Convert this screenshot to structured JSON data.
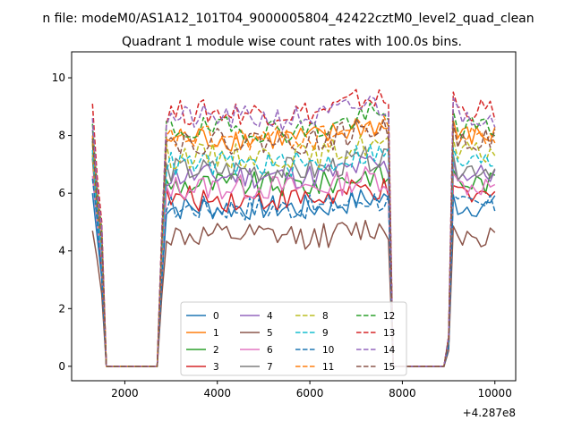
{
  "figure": {
    "suptitle": "n file: modeM0/AS1A12_101T04_9000005804_42422cztM0_level2_quad_clean",
    "title": "Quadrant 1 module wise count rates with 100.0s bins."
  },
  "chart_data": {
    "type": "line",
    "title": "Quadrant 1 module wise count rates with 100.0s bins.",
    "xlabel": "",
    "ylabel": "",
    "x_offset_label": "+4.287e8",
    "xlim": [
      850,
      10450
    ],
    "ylim": [
      -0.5,
      10.9
    ],
    "x_ticks": [
      2000,
      4000,
      6000,
      8000,
      10000
    ],
    "x_tick_labels": [
      "2000",
      "4000",
      "6000",
      "8000",
      "10000"
    ],
    "y_ticks": [
      0,
      2,
      4,
      6,
      8,
      10
    ],
    "y_tick_labels": [
      "0",
      "2",
      "4",
      "6",
      "8",
      "10"
    ],
    "grid": false,
    "legend_position": "lower-center",
    "segment_ranges": [
      [
        1300,
        2700
      ],
      [
        2800,
        7800
      ],
      [
        8900,
        10000
      ]
    ],
    "series": [
      {
        "name": "0",
        "color": "#1f77b4",
        "style": "solid",
        "level": 5.5,
        "spike": 6.0
      },
      {
        "name": "1",
        "color": "#ff7f0e",
        "style": "solid",
        "level": 7.9,
        "spike": 7.7
      },
      {
        "name": "2",
        "color": "#2ca02c",
        "style": "solid",
        "level": 6.3,
        "spike": 7.8
      },
      {
        "name": "3",
        "color": "#d62728",
        "style": "solid",
        "level": 5.8,
        "spike": 7.2
      },
      {
        "name": "4",
        "color": "#9467bd",
        "style": "solid",
        "level": 6.6,
        "spike": 8.2
      },
      {
        "name": "5",
        "color": "#8c564b",
        "style": "solid",
        "level": 4.5,
        "spike": 4.7
      },
      {
        "name": "6",
        "color": "#e377c2",
        "style": "solid",
        "level": 6.2,
        "spike": 6.6
      },
      {
        "name": "7",
        "color": "#7f7f7f",
        "style": "solid",
        "level": 6.8,
        "spike": 7.3
      },
      {
        "name": "8",
        "color": "#bcbd22",
        "style": "dashed",
        "level": 7.3,
        "spike": 7.4
      },
      {
        "name": "9",
        "color": "#17becf",
        "style": "dashed",
        "level": 7.0,
        "spike": 7.5
      },
      {
        "name": "10",
        "color": "#1f77b4",
        "style": "dashed",
        "level": 5.5,
        "spike": 6.5
      },
      {
        "name": "11",
        "color": "#ff7f0e",
        "style": "dashed",
        "level": 7.9,
        "spike": 8.0
      },
      {
        "name": "12",
        "color": "#2ca02c",
        "style": "dashed",
        "level": 8.2,
        "spike": 8.4
      },
      {
        "name": "13",
        "color": "#d62728",
        "style": "dashed",
        "level": 8.8,
        "spike": 9.1
      },
      {
        "name": "14",
        "color": "#9467bd",
        "style": "dashed",
        "level": 8.6,
        "spike": 8.6
      },
      {
        "name": "15",
        "color": "#8c564b",
        "style": "dashed",
        "level": 7.8,
        "spike": 7.9
      }
    ]
  }
}
